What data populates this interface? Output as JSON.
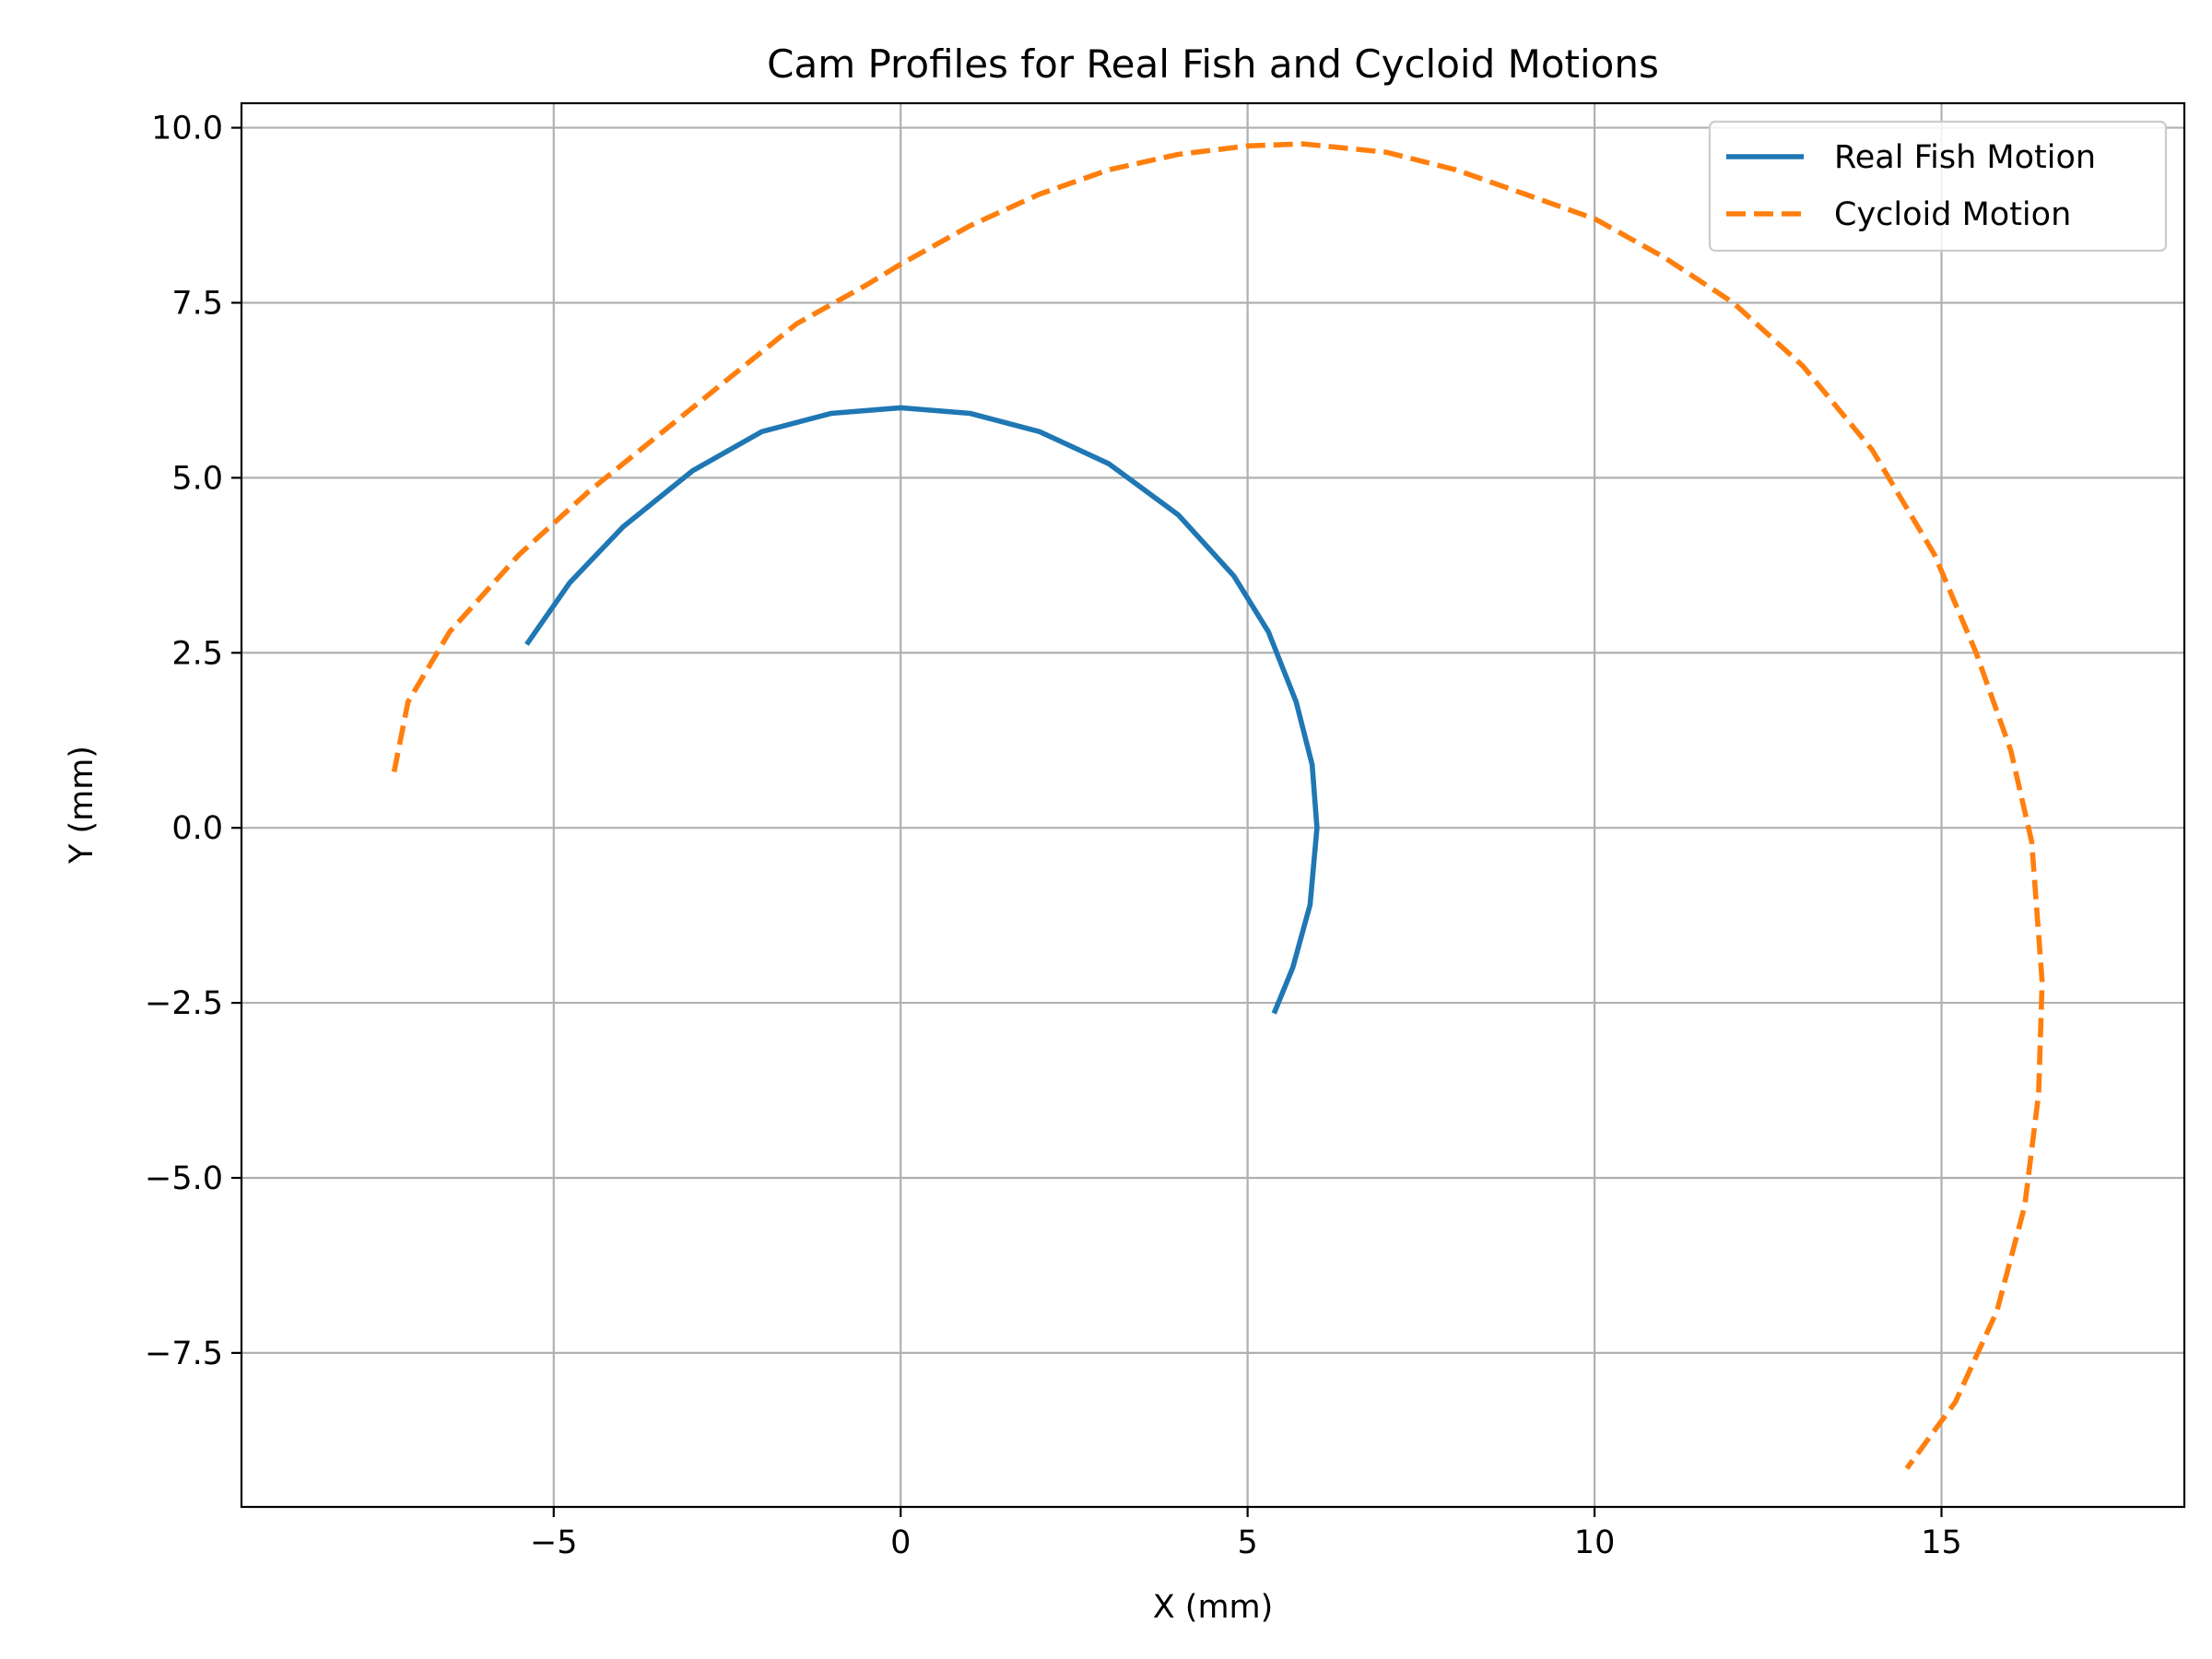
{
  "chart_data": {
    "type": "line",
    "title": "Cam Profiles for Real Fish and Cycloid Motions",
    "xlabel": "X (mm)",
    "ylabel": "Y (mm)",
    "xlim": [
      -9.5,
      18.5
    ],
    "ylim": [
      -9.7,
      10.35
    ],
    "xticks": [
      -5,
      0,
      5,
      10,
      15
    ],
    "xtick_labels": [
      "−5",
      "0",
      "5",
      "10",
      "15"
    ],
    "yticks": [
      10.0,
      7.5,
      5.0,
      2.5,
      0.0,
      -2.5,
      -5.0,
      -7.5
    ],
    "ytick_labels": [
      "10.0",
      "7.5",
      "5.0",
      "2.5",
      "0.0",
      "−2.5",
      "−5.0",
      "−7.5"
    ],
    "grid": true,
    "legend_position": "top-right",
    "series": [
      {
        "name": "Real Fish Motion",
        "color": "#1f77b4",
        "style": "solid",
        "x": [
          -5.39,
          -4.77,
          -4.0,
          -3.0,
          -2.0,
          -1.0,
          0.0,
          1.0,
          2.0,
          3.0,
          4.0,
          4.8,
          5.3,
          5.7,
          5.93,
          6.0,
          5.9,
          5.65,
          5.38
        ],
        "y": [
          2.62,
          3.5,
          4.3,
          5.1,
          5.66,
          5.92,
          6.0,
          5.92,
          5.66,
          5.2,
          4.47,
          3.6,
          2.8,
          1.8,
          0.9,
          0.0,
          -1.1,
          -2.0,
          -2.65
        ]
      },
      {
        "name": "Cycloid Motion",
        "color": "#ff7f0e",
        "style": "dashed",
        "x": [
          -7.3,
          -7.1,
          -6.5,
          -5.5,
          -4.5,
          -3.5,
          -2.5,
          -1.5,
          -0.5,
          0.0,
          1.0,
          2.0,
          3.0,
          4.0,
          5.0,
          5.8,
          7.0,
          8.0,
          9.0,
          10.0,
          11.0,
          12.0,
          13.0,
          14.0,
          14.9,
          15.5,
          16.0,
          16.3,
          16.45,
          16.4,
          16.2,
          15.8,
          15.2,
          14.5
        ],
        "y": [
          0.8,
          1.8,
          2.8,
          3.9,
          4.8,
          5.6,
          6.4,
          7.2,
          7.75,
          8.05,
          8.6,
          9.05,
          9.4,
          9.62,
          9.74,
          9.77,
          9.65,
          9.4,
          9.05,
          8.7,
          8.15,
          7.5,
          6.6,
          5.4,
          3.9,
          2.5,
          1.1,
          -0.2,
          -2.2,
          -3.8,
          -5.4,
          -6.9,
          -8.2,
          -9.15
        ]
      }
    ]
  }
}
